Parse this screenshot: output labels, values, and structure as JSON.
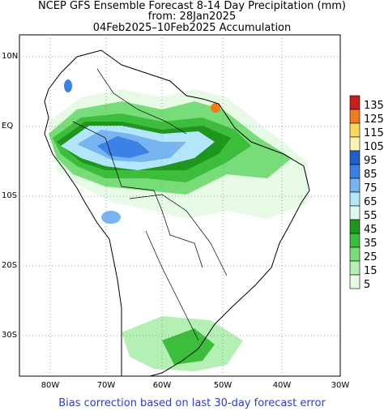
{
  "title": {
    "line1": "NCEP GFS Ensemble Forecast 8-14 Day Precipitation (mm)",
    "line2": "from: 28Jan2025",
    "line3": "04Feb2025–10Feb2025 Accumulation"
  },
  "axes": {
    "lat_labels": [
      "10N",
      "EQ",
      "10S",
      "20S",
      "30S"
    ],
    "lon_labels": [
      "80W",
      "70W",
      "60W",
      "50W",
      "40W",
      "30W"
    ]
  },
  "legend": {
    "levels": [
      {
        "label": "135",
        "color": "#c81e1e"
      },
      {
        "label": "125",
        "color": "#f07a1e"
      },
      {
        "label": "115",
        "color": "#fbd85a"
      },
      {
        "label": "105",
        "color": "#fff3b4"
      },
      {
        "label": "95",
        "color": "#1e5fc8"
      },
      {
        "label": "85",
        "color": "#3c82e6"
      },
      {
        "label": "75",
        "color": "#78b4f0"
      },
      {
        "label": "65",
        "color": "#b4e6fa"
      },
      {
        "label": "55",
        "color": "#dcfaf0"
      },
      {
        "label": "45",
        "color": "#1e961e"
      },
      {
        "label": "35",
        "color": "#3cbe3c"
      },
      {
        "label": "25",
        "color": "#78dc78"
      },
      {
        "label": "15",
        "color": "#b4f0b4"
      },
      {
        "label": "5",
        "color": "#e6fae6"
      }
    ]
  },
  "footer": "Bias correction based on last 30-day forecast error"
}
